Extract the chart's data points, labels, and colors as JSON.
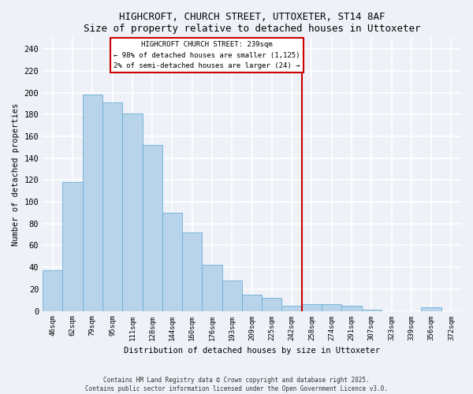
{
  "title1": "HIGHCROFT, CHURCH STREET, UTTOXETER, ST14 8AF",
  "title2": "Size of property relative to detached houses in Uttoxeter",
  "xlabel": "Distribution of detached houses by size in Uttoxeter",
  "ylabel": "Number of detached properties",
  "categories": [
    "46sqm",
    "62sqm",
    "79sqm",
    "95sqm",
    "111sqm",
    "128sqm",
    "144sqm",
    "160sqm",
    "176sqm",
    "193sqm",
    "209sqm",
    "225sqm",
    "242sqm",
    "258sqm",
    "274sqm",
    "291sqm",
    "307sqm",
    "323sqm",
    "339sqm",
    "356sqm",
    "372sqm"
  ],
  "values": [
    37,
    118,
    198,
    191,
    181,
    152,
    90,
    72,
    42,
    28,
    15,
    12,
    5,
    6,
    6,
    5,
    1,
    0,
    0,
    3,
    0
  ],
  "bar_color": "#b8d4ea",
  "bar_edge_color": "#6aaed6",
  "vline_index": 12,
  "annotation_title": "HIGHCROFT CHURCH STREET: 239sqm",
  "annotation_line1": "← 98% of detached houses are smaller (1,125)",
  "annotation_line2": "2% of semi-detached houses are larger (24) →",
  "annotation_box_color": "#cc0000",
  "ylim": [
    0,
    250
  ],
  "yticks": [
    0,
    20,
    40,
    60,
    80,
    100,
    120,
    140,
    160,
    180,
    200,
    220,
    240
  ],
  "footer_line1": "Contains HM Land Registry data © Crown copyright and database right 2025.",
  "footer_line2": "Contains public sector information licensed under the Open Government Licence v3.0.",
  "bg_color": "#eef2f8",
  "grid_color": "#ffffff"
}
